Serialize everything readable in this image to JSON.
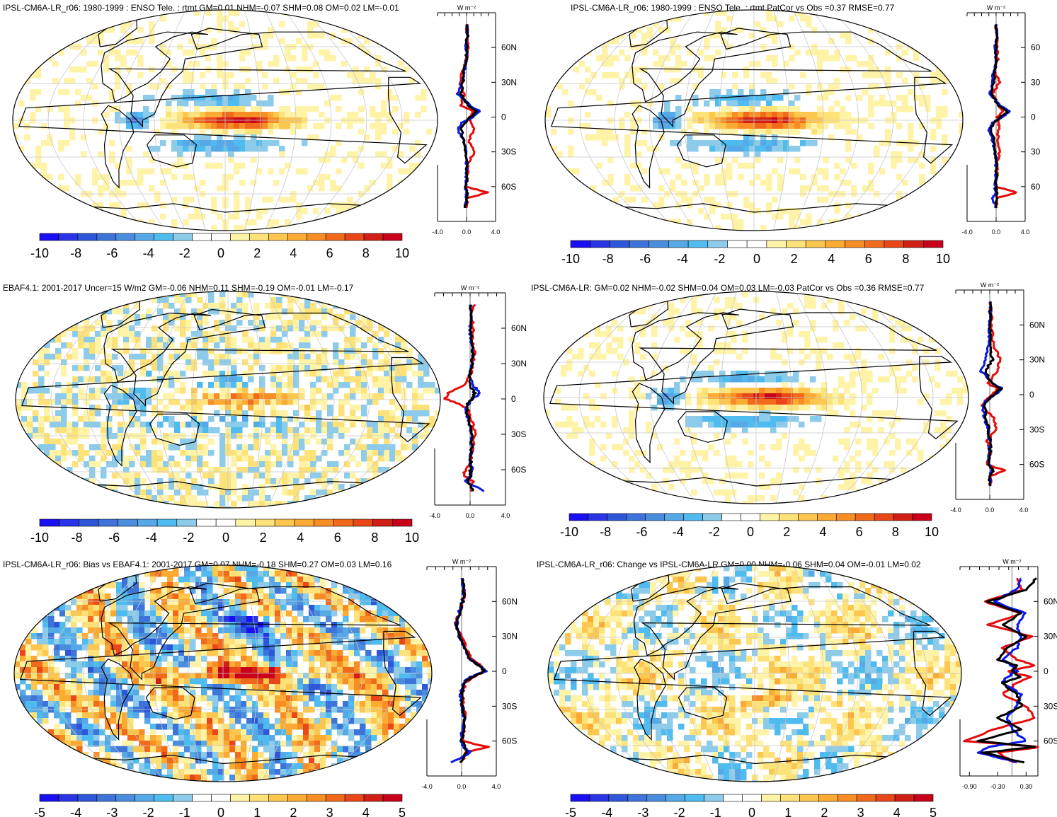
{
  "colors": {
    "map_palette": [
      "#1a0ff0",
      "#2a34e6",
      "#2e56d8",
      "#3e73d9",
      "#4b8ddd",
      "#56a8e6",
      "#4fbbee",
      "#8ccbea",
      "#ffffff",
      "#ffffff",
      "#fff3a8",
      "#fde27a",
      "#fcc64f",
      "#fbab33",
      "#f78d25",
      "#f16a1c",
      "#e9471a",
      "#d11f15",
      "#c8001a"
    ],
    "curve_model": "#0a18e6",
    "curve_obs": "#e60c0c",
    "curve_black": "#000000",
    "coast": "#000000",
    "graticule": "#c8c8c8"
  },
  "panels": [
    {
      "title": "IPSL-CM6A-LR_r06: 1980-1999 : ENSO Tele. : rtmt GM=0.01 NHM=-0.07 SHM=0.08 OM=0.02 LM=-0.01",
      "colorbar_labels": [
        "-10",
        "-8",
        "-6",
        "-4",
        "-2",
        "0",
        "2",
        "4",
        "6",
        "8",
        "10"
      ],
      "profile_unit": "W m⁻²",
      "lat_labels": [
        "60N",
        "30N",
        "0",
        "30S",
        "60S"
      ],
      "x_labels": [
        "-4.0",
        "0.0",
        "4.0"
      ]
    },
    {
      "title": "IPSL-CM6A-LR_r06: 1980-1999 : ENSO Tele. : rtmt PatCor vs Obs =0.37 RMSE=0.77",
      "colorbar_labels": [
        "-10",
        "-8",
        "-6",
        "-4",
        "-2",
        "0",
        "2",
        "4",
        "6",
        "8",
        "10"
      ],
      "profile_unit": "W m⁻²",
      "lat_labels": [
        "60",
        "30",
        "0",
        "30",
        "60"
      ],
      "x_labels": [
        "-4.0",
        "0.0",
        "4.0"
      ]
    },
    {
      "title": "EBAF4.1: 2001-2017 Uncer=15 W/m2 GM=-0.06 NHM=0.11 SHM=-0.19 OM=-0.01 LM=-0.17",
      "colorbar_labels": [
        "-10",
        "-8",
        "-6",
        "-4",
        "-2",
        "0",
        "2",
        "4",
        "6",
        "8",
        "10"
      ],
      "profile_unit": "W m⁻²",
      "lat_labels": [
        "60N",
        "30N",
        "0",
        "30S",
        "60S"
      ],
      "x_labels": [
        "-4.0",
        "0.0",
        "4.0"
      ]
    },
    {
      "title": "IPSL-CM6A-LR: GM=0.02 NHM=-0.02 SHM=0.04 OM=0.03 LM=-0.03 PatCor vs Obs =0.36 RMSE=0.77",
      "colorbar_labels": [
        "-10",
        "-8",
        "-6",
        "-4",
        "-2",
        "0",
        "2",
        "4",
        "6",
        "8",
        "10"
      ],
      "profile_unit": "W m⁻²",
      "lat_labels": [
        "60N",
        "30N",
        "0",
        "30S",
        "60S"
      ],
      "x_labels": [
        "-4.0",
        "0.0",
        "4.0"
      ]
    },
    {
      "title": "IPSL-CM6A-LR_r06: Bias vs EBAF4.1: 2001-2017 GM=0.07 NHM=-0.18 SHM=0.27 OM=0.03 LM=0.16",
      "colorbar_labels": [
        "-5",
        "-4",
        "-3",
        "-2",
        "-1",
        "0",
        "1",
        "2",
        "3",
        "4",
        "5"
      ],
      "profile_unit": "W m⁻²",
      "lat_labels": [
        "60N",
        "30N",
        "0",
        "30S",
        "60S"
      ],
      "x_labels": [
        "-4.0",
        "0.0",
        "4.0"
      ]
    },
    {
      "title": "IPSL-CM6A-LR_r06: Change vs IPSL-CM6A-LR GM=0.00 NHM=-0.06 SHM=0.04 OM=-0.01 LM=0.02",
      "colorbar_labels": [
        "-5",
        "-4",
        "-3",
        "-2",
        "-1",
        "0",
        "1",
        "2",
        "3",
        "4",
        "5"
      ],
      "profile_unit": "W m⁻²",
      "lat_labels": [
        "60N",
        "30N",
        "0",
        "30S",
        "60S"
      ],
      "x_labels": [
        "-0.90",
        "-0.30",
        "0.30"
      ]
    }
  ],
  "chart_data": [
    {
      "type": "heatmap",
      "title": "IPSL-CM6A-LR_r06: 1980-1999 : ENSO Tele. : rtmt GM=0.01 NHM=-0.07 SHM=0.08 OM=0.02 LM=-0.01",
      "colorbar_ticks": [
        -10,
        -8,
        -6,
        -4,
        -2,
        0,
        2,
        4,
        6,
        8,
        10
      ],
      "profile": {
        "ylim": [
          -90,
          90
        ],
        "xlim": [
          -4,
          4
        ],
        "lat": [
          80,
          70,
          60,
          50,
          40,
          30,
          20,
          10,
          5,
          0,
          -5,
          -10,
          -20,
          -30,
          -40,
          -50,
          -60,
          -65,
          -70,
          -80
        ],
        "series": [
          {
            "color": "blue",
            "values": [
              0,
              0.1,
              -0.2,
              0,
              -0.3,
              -0.6,
              -1.2,
              0.5,
              1.8,
              0.8,
              -0.6,
              -1.2,
              -0.5,
              -0.1,
              0,
              0,
              -0.1,
              0,
              0,
              -0.2
            ]
          },
          {
            "color": "red",
            "values": [
              0,
              0.1,
              0.2,
              0,
              -0.5,
              -1.0,
              -0.3,
              -0.8,
              1.0,
              0.4,
              0.6,
              1.0,
              0.3,
              1.2,
              0.1,
              0.2,
              -0.2,
              3.0,
              0.1,
              0
            ]
          },
          {
            "color": "black",
            "values": [
              0,
              0.1,
              0,
              0,
              -0.3,
              -0.5,
              -0.8,
              0.2,
              1.5,
              0.6,
              -0.3,
              -0.8,
              -0.4,
              -0.1,
              0,
              0.1,
              -0.1,
              0.1,
              0,
              -0.1
            ]
          }
        ]
      }
    },
    {
      "type": "heatmap",
      "title": "IPSL-CM6A-LR_r06: 1980-1999 : ENSO Tele. : rtmt PatCor vs Obs =0.37 RMSE=0.77",
      "colorbar_ticks": [
        -10,
        -8,
        -6,
        -4,
        -2,
        0,
        2,
        4,
        6,
        8,
        10
      ],
      "profile": {
        "ylim": [
          -90,
          90
        ],
        "xlim": [
          -4,
          4
        ],
        "lat": [
          80,
          70,
          60,
          50,
          40,
          30,
          20,
          10,
          5,
          0,
          -5,
          -10,
          -20,
          -30,
          -40,
          -50,
          -60,
          -65,
          -70,
          -80
        ],
        "series": [
          {
            "color": "blue",
            "values": [
              0,
              0.1,
              -0.1,
              0,
              -0.3,
              -0.5,
              -0.8,
              0.6,
              1.9,
              0.8,
              -0.5,
              -1.0,
              -0.5,
              -0.1,
              0,
              0,
              -0.2,
              0,
              -0.5,
              0
            ]
          },
          {
            "color": "red",
            "values": [
              0,
              0.1,
              0.1,
              0.2,
              -0.2,
              0.5,
              -0.5,
              0.3,
              0.8,
              0.2,
              0.3,
              0.4,
              0.2,
              0.5,
              0.1,
              0.1,
              -0.1,
              2.8,
              0.1,
              0
            ]
          },
          {
            "color": "black",
            "values": [
              0,
              0.1,
              0,
              0,
              -0.2,
              -0.4,
              -0.6,
              0.3,
              1.6,
              0.6,
              -0.3,
              -0.7,
              -0.3,
              -0.1,
              0,
              0.1,
              -0.1,
              0.1,
              0,
              0
            ]
          }
        ]
      }
    },
    {
      "type": "heatmap",
      "title": "EBAF4.1: 2001-2017 Uncer=15 W/m2 GM=-0.06 NHM=0.11 SHM=-0.19 OM=-0.01 LM=-0.17",
      "colorbar_ticks": [
        -10,
        -8,
        -6,
        -4,
        -2,
        0,
        2,
        4,
        6,
        8,
        10
      ],
      "profile": {
        "ylim": [
          -90,
          90
        ],
        "xlim": [
          -4,
          4
        ],
        "lat": [
          80,
          70,
          60,
          50,
          40,
          30,
          20,
          10,
          5,
          0,
          -5,
          -10,
          -20,
          -30,
          -40,
          -50,
          -60,
          -65,
          -70,
          -80
        ],
        "series": [
          {
            "color": "blue",
            "values": [
              0,
              0.2,
              0,
              0.1,
              0.3,
              0.2,
              -0.2,
              0.5,
              1.2,
              0.3,
              -0.3,
              -0.5,
              -0.2,
              0.1,
              0.2,
              0,
              0.2,
              0.1,
              -0.5,
              2.0
            ]
          },
          {
            "color": "red",
            "values": [
              0.5,
              0.1,
              0.4,
              0.2,
              0.5,
              0.3,
              0.1,
              -1.0,
              -2.5,
              -2.8,
              -1.0,
              -0.2,
              0.3,
              0.5,
              0.3,
              0.2,
              -0.5,
              -0.8,
              0.3,
              0.1
            ]
          },
          {
            "color": "black",
            "values": [
              0,
              0.1,
              0.1,
              0.1,
              0.3,
              0.2,
              -0.1,
              0.1,
              0.5,
              0.2,
              -0.3,
              -0.4,
              -0.1,
              0.2,
              0.2,
              0.1,
              0,
              0.1,
              -0.2,
              0.5
            ]
          }
        ]
      }
    },
    {
      "type": "heatmap",
      "title": "IPSL-CM6A-LR: GM=0.02 NHM=-0.02 SHM=0.04 OM=0.03 LM=-0.03 PatCor vs Obs =0.36 RMSE=0.77",
      "colorbar_ticks": [
        -10,
        -8,
        -6,
        -4,
        -2,
        0,
        2,
        4,
        6,
        8,
        10
      ],
      "profile": {
        "ylim": [
          -90,
          90
        ],
        "xlim": [
          -4,
          4
        ],
        "lat": [
          80,
          70,
          60,
          50,
          40,
          30,
          20,
          10,
          5,
          0,
          -5,
          -10,
          -20,
          -30,
          -40,
          -50,
          -60,
          -65,
          -70,
          -80
        ],
        "series": [
          {
            "color": "blue",
            "values": [
              0,
              0.1,
              0,
              0,
              -0.2,
              -0.5,
              -1.0,
              0.3,
              1.5,
              0.6,
              -0.4,
              -0.8,
              -0.6,
              -0.2,
              0,
              0,
              -0.1,
              0.3,
              0,
              0
            ]
          },
          {
            "color": "red",
            "values": [
              0,
              0.2,
              0.1,
              0.3,
              0.6,
              1.2,
              0.8,
              -0.3,
              1.0,
              0.2,
              -0.5,
              -0.9,
              0.5,
              0.7,
              -0.3,
              0.2,
              -0.4,
              1.8,
              0.1,
              0
            ]
          },
          {
            "color": "black",
            "values": [
              0,
              0.1,
              0,
              0.1,
              0,
              0.3,
              -0.5,
              0.2,
              1.3,
              0.5,
              -0.3,
              -0.6,
              -0.4,
              -0.1,
              0,
              0.1,
              -0.1,
              0.5,
              0,
              0
            ]
          }
        ]
      }
    },
    {
      "type": "heatmap",
      "title": "IPSL-CM6A-LR_r06: Bias vs EBAF4.1: 2001-2017 GM=0.07 NHM=-0.18 SHM=0.27 OM=0.03 LM=0.16",
      "colorbar_ticks": [
        -5,
        -4,
        -3,
        -2,
        -1,
        0,
        1,
        2,
        3,
        4,
        5
      ],
      "profile": {
        "ylim": [
          -90,
          90
        ],
        "xlim": [
          -4,
          4
        ],
        "lat": [
          80,
          70,
          60,
          50,
          40,
          30,
          20,
          10,
          5,
          0,
          -5,
          -10,
          -20,
          -30,
          -40,
          -50,
          -60,
          -65,
          -70,
          -80
        ],
        "series": [
          {
            "color": "blue",
            "values": [
              0,
              0.3,
              0.1,
              -0.3,
              -0.6,
              -0.3,
              0.3,
              1.0,
              2.0,
              2.8,
              1.0,
              0.2,
              -0.1,
              0.1,
              0.3,
              0.1,
              0,
              0.2,
              1.0,
              -1.5
            ]
          },
          {
            "color": "red",
            "values": [
              0,
              0.4,
              0.2,
              -0.2,
              -0.8,
              0,
              0.5,
              1.2,
              2.2,
              2.6,
              1.5,
              0.4,
              0.1,
              0.2,
              0.4,
              0.3,
              0.1,
              3.0,
              0.4,
              0
            ]
          },
          {
            "color": "black",
            "values": [
              0,
              0.3,
              0.1,
              -0.3,
              -0.6,
              -0.2,
              0.4,
              1.0,
              2.0,
              2.7,
              1.2,
              0.3,
              0,
              0.1,
              0.3,
              0.2,
              0.1,
              0.4,
              0.5,
              -0.3
            ]
          }
        ]
      }
    },
    {
      "type": "heatmap",
      "title": "IPSL-CM6A-LR_r06: Change vs IPSL-CM6A-LR GM=0.00 NHM=-0.06 SHM=0.04 OM=-0.01 LM=0.02",
      "colorbar_ticks": [
        -5,
        -4,
        -3,
        -2,
        -1,
        0,
        1,
        2,
        3,
        4,
        5
      ],
      "profile": {
        "ylim": [
          -90,
          90
        ],
        "xlim": [
          -1.1,
          0.55
        ],
        "lat": [
          80,
          70,
          60,
          50,
          40,
          30,
          20,
          10,
          5,
          0,
          -5,
          -10,
          -20,
          -30,
          -40,
          -50,
          -60,
          -65,
          -70,
          -80
        ],
        "series": [
          {
            "color": "blue",
            "values": [
              0.2,
              0.1,
              -0.4,
              0.3,
              0.1,
              0.2,
              0.1,
              -0.2,
              0,
              0.1,
              -0.1,
              -0.2,
              0.2,
              0.1,
              -0.1,
              0,
              0.3,
              -0.5,
              -0.7,
              0.3
            ]
          },
          {
            "color": "red",
            "values": [
              0.1,
              0.2,
              -0.6,
              0.2,
              -0.5,
              0.4,
              -0.2,
              0.1,
              0.5,
              -0.1,
              0.4,
              0.1,
              -0.2,
              0.3,
              0.5,
              -0.4,
              -1.0,
              0.6,
              -0.3,
              0.1
            ]
          },
          {
            "color": "black",
            "values": [
              0.5,
              0.3,
              -0.5,
              0.2,
              -0.2,
              0.3,
              -0.1,
              -0.3,
              0.1,
              0,
              0.2,
              -0.2,
              0.1,
              0.2,
              -0.3,
              0.2,
              -0.7,
              0.5,
              -0.6,
              0.4
            ]
          }
        ]
      }
    }
  ]
}
